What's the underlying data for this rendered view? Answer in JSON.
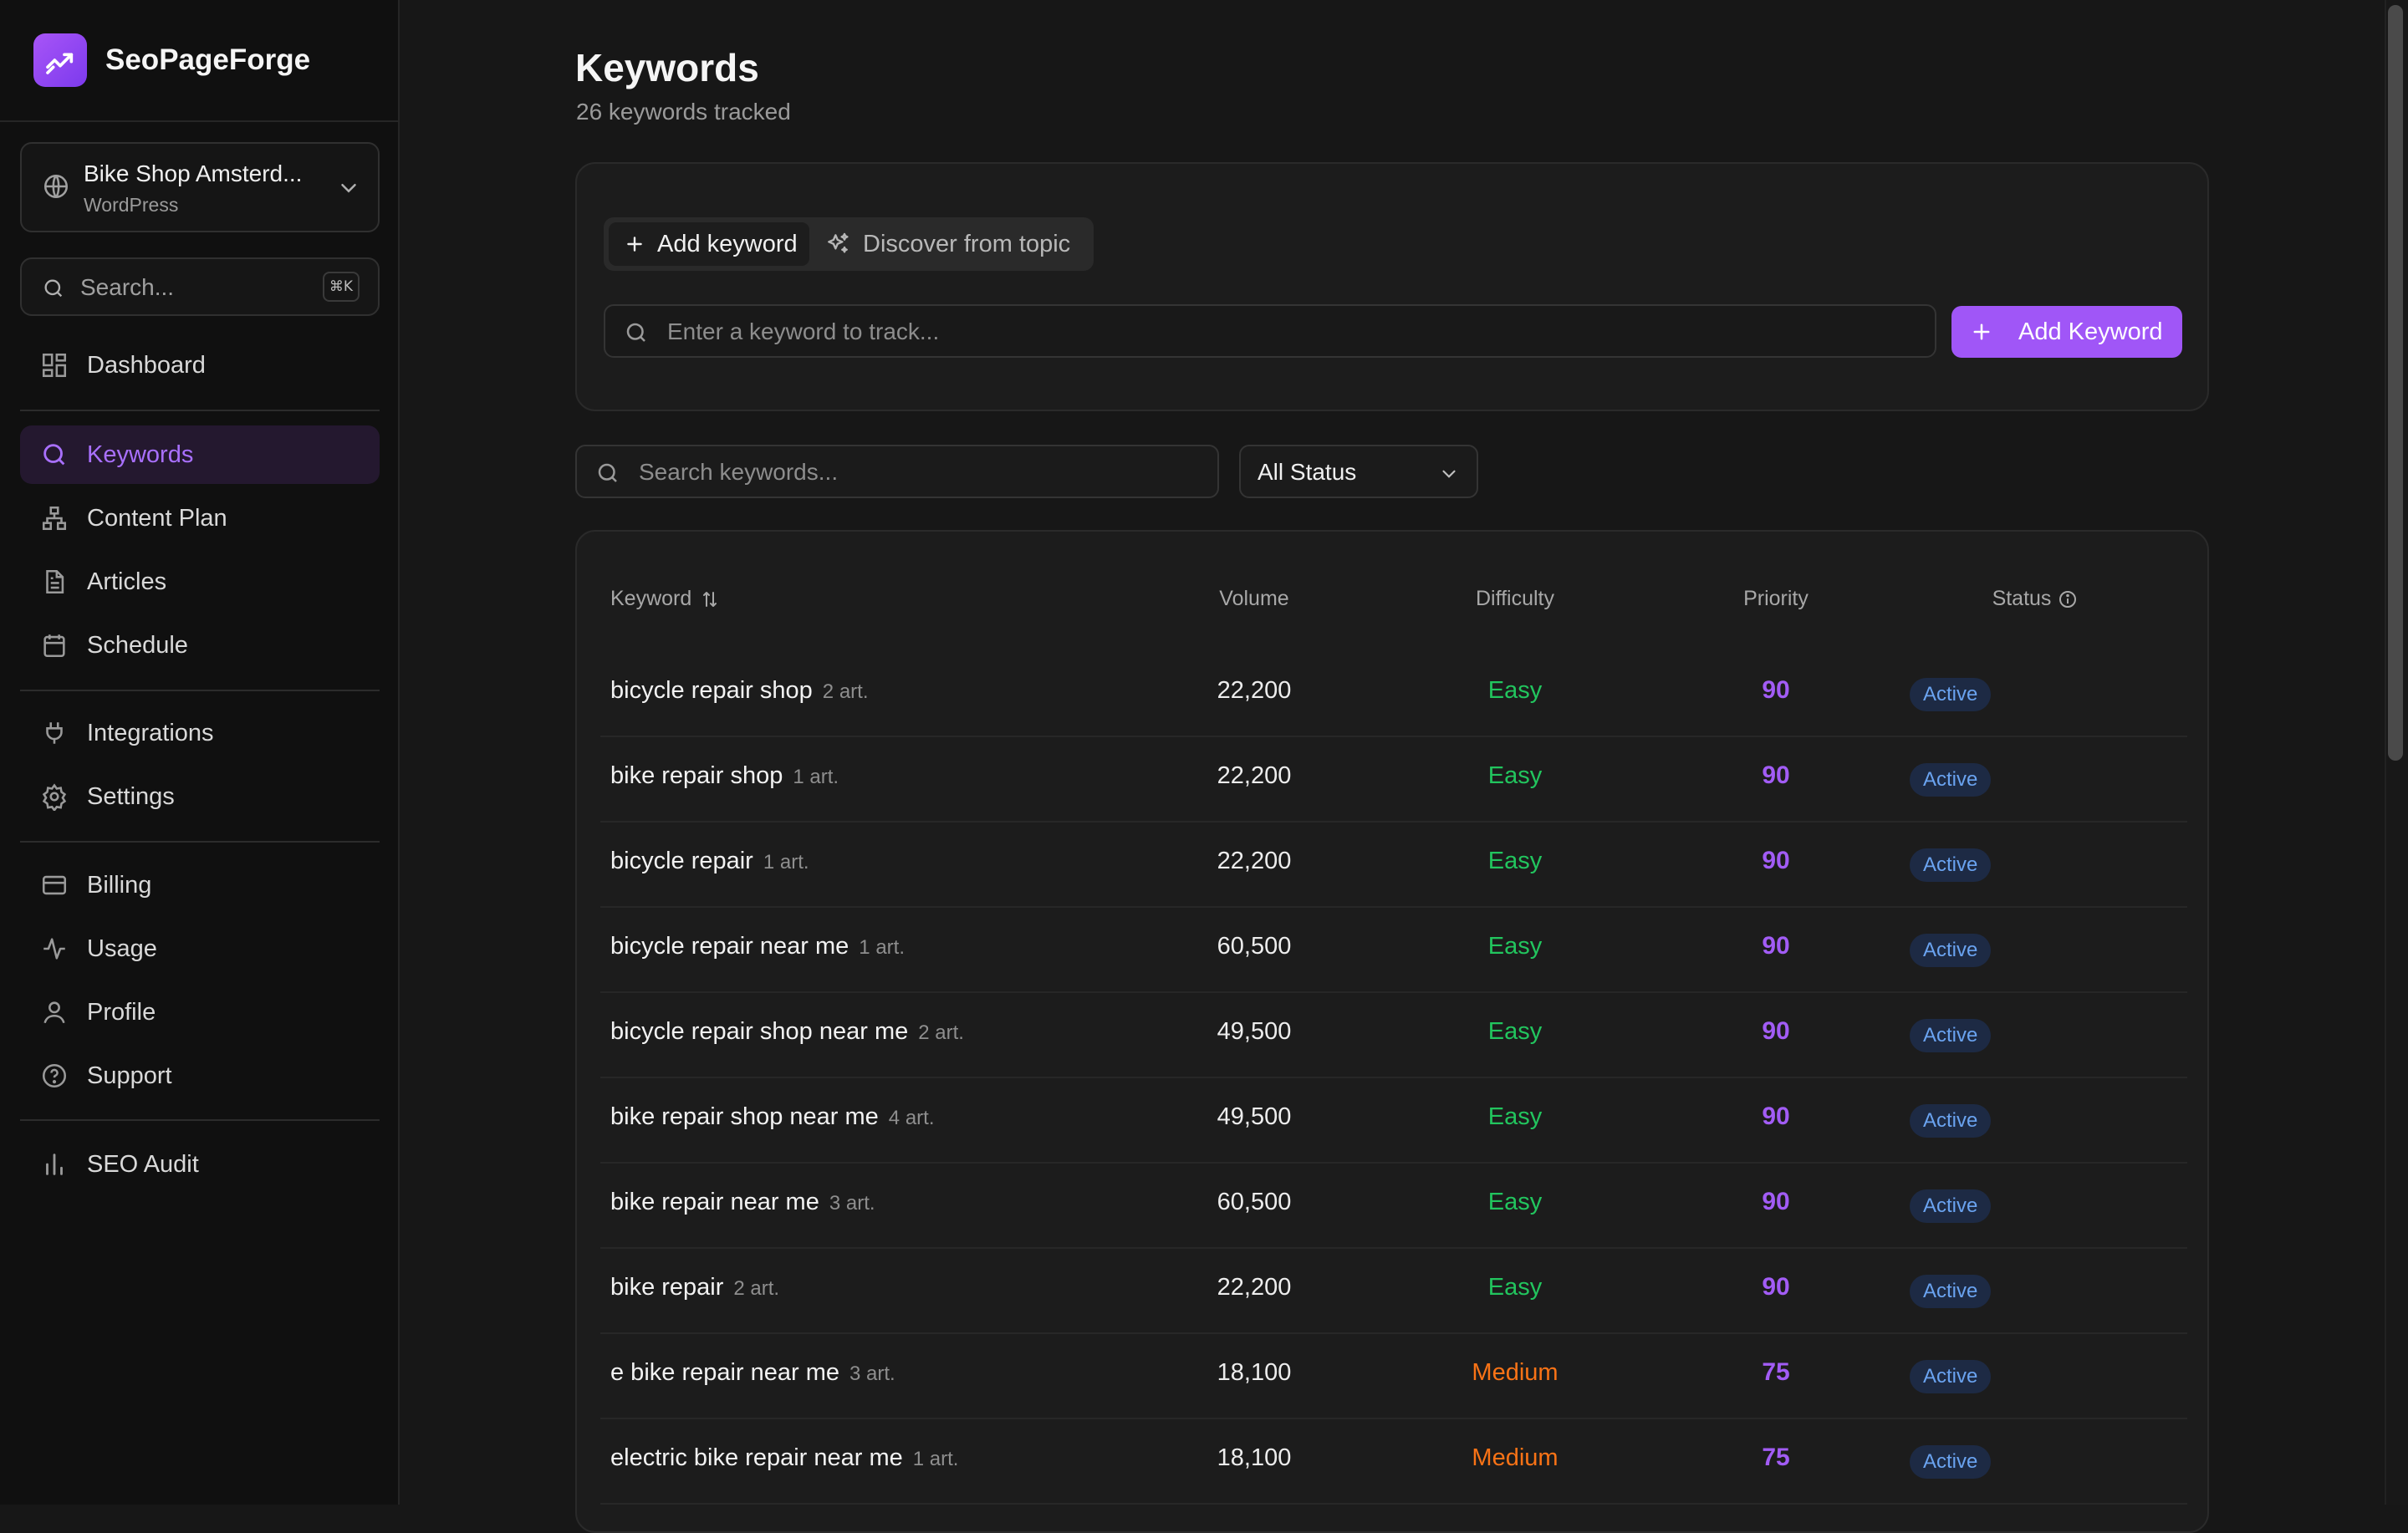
{
  "brand": {
    "name": "SeoPageForge"
  },
  "site": {
    "name": "Bike Shop Amsterd...",
    "platform": "WordPress"
  },
  "sidebar_search": {
    "placeholder": "Search...",
    "shortcut": "⌘K"
  },
  "nav": {
    "dashboard": "Dashboard",
    "keywords": "Keywords",
    "content_plan": "Content Plan",
    "articles": "Articles",
    "schedule": "Schedule",
    "integrations": "Integrations",
    "settings": "Settings",
    "billing": "Billing",
    "usage": "Usage",
    "profile": "Profile",
    "support": "Support",
    "seo_audit": "SEO Audit"
  },
  "header": {
    "title": "Keywords",
    "subtitle": "26 keywords tracked"
  },
  "add_panel": {
    "tab_add": "Add keyword",
    "tab_discover": "Discover from topic",
    "input_placeholder": "Enter a keyword to track...",
    "button_label": "Add Keyword"
  },
  "filters": {
    "search_placeholder": "Search keywords...",
    "status_value": "All Status"
  },
  "table": {
    "headers": {
      "keyword": "Keyword",
      "volume": "Volume",
      "difficulty": "Difficulty",
      "priority": "Priority",
      "status": "Status"
    },
    "rows": [
      {
        "keyword": "bicycle repair shop",
        "articles": "2 art.",
        "volume": "22,200",
        "difficulty": "Easy",
        "priority": "90",
        "status": "Active"
      },
      {
        "keyword": "bike repair shop",
        "articles": "1 art.",
        "volume": "22,200",
        "difficulty": "Easy",
        "priority": "90",
        "status": "Active"
      },
      {
        "keyword": "bicycle repair",
        "articles": "1 art.",
        "volume": "22,200",
        "difficulty": "Easy",
        "priority": "90",
        "status": "Active"
      },
      {
        "keyword": "bicycle repair near me",
        "articles": "1 art.",
        "volume": "60,500",
        "difficulty": "Easy",
        "priority": "90",
        "status": "Active"
      },
      {
        "keyword": "bicycle repair shop near me",
        "articles": "2 art.",
        "volume": "49,500",
        "difficulty": "Easy",
        "priority": "90",
        "status": "Active"
      },
      {
        "keyword": "bike repair shop near me",
        "articles": "4 art.",
        "volume": "49,500",
        "difficulty": "Easy",
        "priority": "90",
        "status": "Active"
      },
      {
        "keyword": "bike repair near me",
        "articles": "3 art.",
        "volume": "60,500",
        "difficulty": "Easy",
        "priority": "90",
        "status": "Active"
      },
      {
        "keyword": "bike repair",
        "articles": "2 art.",
        "volume": "22,200",
        "difficulty": "Easy",
        "priority": "90",
        "status": "Active"
      },
      {
        "keyword": "e bike repair near me",
        "articles": "3 art.",
        "volume": "18,100",
        "difficulty": "Medium",
        "priority": "75",
        "status": "Active"
      },
      {
        "keyword": "electric bike repair near me",
        "articles": "1 art.",
        "volume": "18,100",
        "difficulty": "Medium",
        "priority": "75",
        "status": "Active"
      }
    ]
  },
  "colors": {
    "accent": "#a056f7",
    "easy": "#22c55e",
    "medium": "#f97316",
    "badge_text": "#6aa3f0"
  }
}
